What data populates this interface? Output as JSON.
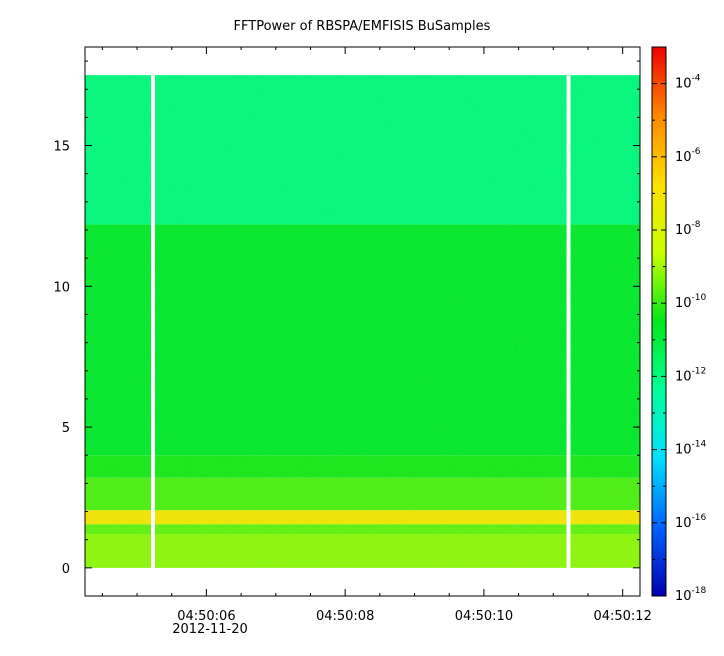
{
  "chart_data": {
    "type": "heatmap",
    "title": "FFTPower of RBSPA/EMFISIS  BuSamples",
    "xlabel": "",
    "ylabel": "",
    "x_tick_labels": [
      "04:50:06",
      "04:50:08",
      "04:50:10",
      "04:50:12"
    ],
    "x_tick_seconds": [
      6,
      8,
      10,
      12
    ],
    "x_date_label": "2012-11-20",
    "xlim_seconds": [
      4.25,
      12.25
    ],
    "y_ticks": [
      0,
      5,
      10,
      15
    ],
    "ylim": [
      -1,
      18.5
    ],
    "data_frequency_range": [
      0,
      17.5
    ],
    "data_gap_seconds": [
      5.23,
      11.22
    ],
    "bands": [
      {
        "y_range": [
          0,
          1.2
        ],
        "log_power": -9.2
      },
      {
        "y_range": [
          1.2,
          1.55
        ],
        "log_power": -9.6
      },
      {
        "y_range": [
          1.55,
          2.05
        ],
        "log_power": -7.2
      },
      {
        "y_range": [
          2.05,
          3.2
        ],
        "log_power": -9.8
      },
      {
        "y_range": [
          3.2,
          4.0
        ],
        "log_power": -10.3
      },
      {
        "y_range": [
          4.0,
          12.2
        ],
        "log_power": -10.7
      },
      {
        "y_range": [
          12.2,
          17.5
        ],
        "log_power": -11.9
      }
    ],
    "colorbar": {
      "scale": "log",
      "range": [
        1e-18,
        0.001
      ],
      "tick_exponents": [
        -4,
        -6,
        -8,
        -10,
        -12,
        -14,
        -16,
        -18
      ],
      "tick_base": "10",
      "colors": [
        "#0000b0",
        "#0060ff",
        "#00e0ff",
        "#00ff9a",
        "#00e81a",
        "#c8ff00",
        "#ffe000",
        "#ff8800",
        "#ee0000"
      ]
    }
  }
}
